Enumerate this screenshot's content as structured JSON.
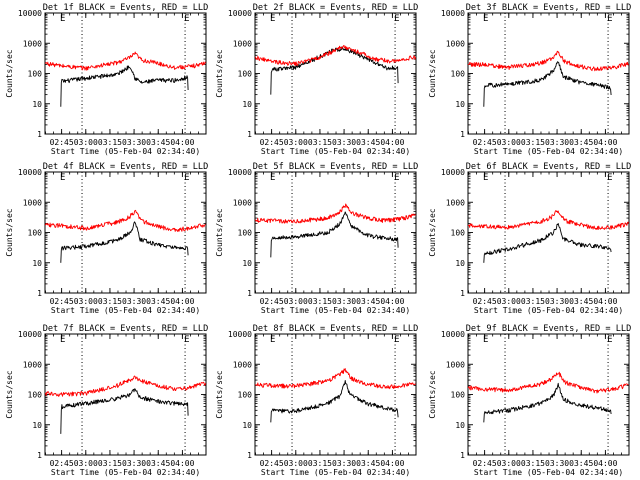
{
  "colors": {
    "events": "#000000",
    "lld": "#ff0000",
    "axis": "#000000",
    "background": "#ffffff"
  },
  "chart_data": [
    {
      "type": "line",
      "title": "Det 1f BLACK = Events, RED = LLD",
      "ylabel": "Counts/sec",
      "xlabel": "Start Time (05-Feb-04 02:34:40)",
      "x_tick_labels": [
        "02:45",
        "03:00",
        "03:15",
        "03:30",
        "03:45",
        "04:00"
      ],
      "x_ticks_min": [
        10.33,
        25.33,
        40.33,
        55.33,
        70.33,
        85.33
      ],
      "y_tick_labels": [
        "1",
        "10",
        "100",
        "1000",
        "10000"
      ],
      "ylim": [
        1,
        10000
      ],
      "yscale": "log",
      "xlim_min": [
        0,
        100
      ],
      "vlines_min": [
        23,
        87
      ],
      "vline_labels": [
        "E",
        "E"
      ],
      "series": [
        {
          "name": "BLACK",
          "color": "#000000",
          "x_min": [
            9.8,
            10.2,
            11,
            25,
            45,
            53,
            56,
            60,
            70,
            82,
            88.7,
            89.2
          ],
          "y": [
            8,
            65,
            55,
            70,
            95,
            180,
            70,
            50,
            60,
            60,
            80,
            6
          ]
        },
        {
          "name": "RED",
          "color": "#ff0000",
          "x_min": [
            0,
            10,
            25,
            45,
            52,
            56,
            60,
            70,
            80,
            90,
            100
          ],
          "y": [
            220,
            180,
            150,
            230,
            320,
            450,
            280,
            220,
            160,
            170,
            220
          ]
        }
      ]
    },
    {
      "type": "line",
      "title": "Det 2f BLACK = Events, RED = LLD",
      "ylabel": "Counts/sec",
      "xlabel": "Start Time (05-Feb-04 02:34:40)",
      "x_tick_labels": [
        "02:45",
        "03:00",
        "03:15",
        "03:30",
        "03:45",
        "04:00"
      ],
      "x_ticks_min": [
        10.33,
        25.33,
        40.33,
        55.33,
        70.33,
        85.33
      ],
      "y_tick_labels": [
        "1",
        "10",
        "100",
        "1000",
        "10000"
      ],
      "ylim": [
        1,
        10000
      ],
      "yscale": "log",
      "xlim_min": [
        0,
        100
      ],
      "vlines_min": [
        23,
        87
      ],
      "vline_labels": [
        "E",
        "E"
      ],
      "series": [
        {
          "name": "BLACK",
          "color": "#000000",
          "x_min": [
            9.8,
            10.2,
            14,
            25,
            37,
            47,
            55,
            63,
            73,
            82,
            88.7,
            89.2
          ],
          "y": [
            20,
            140,
            140,
            160,
            300,
            550,
            700,
            450,
            250,
            150,
            160,
            8
          ]
        },
        {
          "name": "RED",
          "color": "#ff0000",
          "x_min": [
            0,
            10,
            25,
            37,
            47,
            55,
            65,
            75,
            85,
            95,
            100
          ],
          "y": [
            350,
            250,
            210,
            300,
            500,
            800,
            500,
            300,
            250,
            320,
            350
          ]
        }
      ]
    },
    {
      "type": "line",
      "title": "Det 3f BLACK = Events, RED = LLD",
      "ylabel": "Counts/sec",
      "xlabel": "Start Time (05-Feb-04 02:34:40)",
      "x_tick_labels": [
        "02:45",
        "03:00",
        "03:15",
        "03:30",
        "03:45",
        "04:00"
      ],
      "x_ticks_min": [
        10.33,
        25.33,
        40.33,
        55.33,
        70.33,
        85.33
      ],
      "y_tick_labels": [
        "1",
        "10",
        "100",
        "1000",
        "10000"
      ],
      "ylim": [
        1,
        10000
      ],
      "yscale": "log",
      "xlim_min": [
        0,
        100
      ],
      "vlines_min": [
        23,
        87
      ],
      "vline_labels": [
        "E",
        "E"
      ],
      "series": [
        {
          "name": "BLACK",
          "color": "#000000",
          "x_min": [
            9.8,
            10.2,
            25,
            45,
            53,
            56,
            59,
            70,
            82,
            88.7,
            89.2
          ],
          "y": [
            8,
            40,
            45,
            60,
            120,
            260,
            80,
            50,
            40,
            35,
            8
          ]
        },
        {
          "name": "RED",
          "color": "#ff0000",
          "x_min": [
            0,
            10,
            25,
            45,
            52,
            56,
            60,
            70,
            80,
            90,
            100
          ],
          "y": [
            200,
            200,
            160,
            220,
            300,
            500,
            250,
            170,
            140,
            160,
            210
          ]
        }
      ]
    },
    {
      "type": "line",
      "title": "Det 4f BLACK = Events, RED = LLD",
      "ylabel": "Counts/sec",
      "xlabel": "Start Time (05-Feb-04 02:34:40)",
      "x_tick_labels": [
        "02:45",
        "03:00",
        "03:15",
        "03:30",
        "03:45",
        "04:00"
      ],
      "x_ticks_min": [
        10.33,
        25.33,
        40.33,
        55.33,
        70.33,
        85.33
      ],
      "y_tick_labels": [
        "1",
        "10",
        "100",
        "1000",
        "10000"
      ],
      "ylim": [
        1,
        10000
      ],
      "yscale": "log",
      "xlim_min": [
        0,
        100
      ],
      "vlines_min": [
        23,
        87
      ],
      "vline_labels": [
        "E",
        "E"
      ],
      "series": [
        {
          "name": "BLACK",
          "color": "#000000",
          "x_min": [
            9.8,
            10.2,
            25,
            45,
            53,
            56,
            59,
            70,
            82,
            88.7,
            89.2
          ],
          "y": [
            10,
            30,
            35,
            55,
            100,
            220,
            60,
            40,
            30,
            30,
            8
          ]
        },
        {
          "name": "RED",
          "color": "#ff0000",
          "x_min": [
            0,
            10,
            25,
            45,
            52,
            56,
            60,
            70,
            80,
            90,
            100
          ],
          "y": [
            180,
            170,
            140,
            220,
            320,
            500,
            250,
            160,
            120,
            140,
            190
          ]
        }
      ]
    },
    {
      "type": "line",
      "title": "Det 5f BLACK = Events, RED = LLD",
      "ylabel": "Counts/sec",
      "xlabel": "Start Time (05-Feb-04 02:34:40)",
      "x_tick_labels": [
        "02:45",
        "03:00",
        "03:15",
        "03:30",
        "03:45",
        "04:00"
      ],
      "x_ticks_min": [
        10.33,
        25.33,
        40.33,
        55.33,
        70.33,
        85.33
      ],
      "y_tick_labels": [
        "1",
        "10",
        "100",
        "1000",
        "10000"
      ],
      "ylim": [
        1,
        10000
      ],
      "yscale": "log",
      "xlim_min": [
        0,
        100
      ],
      "vlines_min": [
        23,
        87
      ],
      "vline_labels": [
        "E",
        "E"
      ],
      "series": [
        {
          "name": "BLACK",
          "color": "#000000",
          "x_min": [
            9.8,
            10.2,
            25,
            45,
            53,
            56,
            59,
            70,
            82,
            88.7,
            89.2
          ],
          "y": [
            15,
            65,
            70,
            100,
            200,
            500,
            180,
            80,
            65,
            60,
            12
          ]
        },
        {
          "name": "RED",
          "color": "#ff0000",
          "x_min": [
            0,
            10,
            25,
            45,
            52,
            56,
            60,
            70,
            80,
            90,
            100
          ],
          "y": [
            260,
            250,
            230,
            300,
            450,
            800,
            450,
            300,
            250,
            280,
            380
          ]
        }
      ]
    },
    {
      "type": "line",
      "title": "Det 6f BLACK = Events, RED = LLD",
      "ylabel": "Counts/sec",
      "xlabel": "Start Time (05-Feb-04 02:34:40)",
      "x_tick_labels": [
        "02:45",
        "03:00",
        "03:15",
        "03:30",
        "03:45",
        "04:00"
      ],
      "x_ticks_min": [
        10.33,
        25.33,
        40.33,
        55.33,
        70.33,
        85.33
      ],
      "y_tick_labels": [
        "1",
        "10",
        "100",
        "1000",
        "10000"
      ],
      "ylim": [
        1,
        10000
      ],
      "yscale": "log",
      "xlim_min": [
        0,
        100
      ],
      "vlines_min": [
        23,
        87
      ],
      "vline_labels": [
        "E",
        "E"
      ],
      "series": [
        {
          "name": "BLACK",
          "color": "#000000",
          "x_min": [
            9.8,
            10.2,
            25,
            45,
            53,
            56,
            59,
            70,
            82,
            88.7,
            89.2
          ],
          "y": [
            10,
            20,
            28,
            55,
            100,
            200,
            60,
            40,
            35,
            30,
            15
          ]
        },
        {
          "name": "RED",
          "color": "#ff0000",
          "x_min": [
            0,
            10,
            25,
            45,
            52,
            56,
            60,
            70,
            80,
            90,
            100
          ],
          "y": [
            170,
            160,
            150,
            230,
            330,
            550,
            250,
            180,
            140,
            150,
            200
          ]
        }
      ]
    },
    {
      "type": "line",
      "title": "Det 7f BLACK = Events, RED = LLD",
      "ylabel": "Counts/sec",
      "xlabel": "Start Time (05-Feb-04 02:34:40)",
      "x_tick_labels": [
        "02:45",
        "03:00",
        "03:15",
        "03:30",
        "03:45",
        "04:00"
      ],
      "x_ticks_min": [
        10.33,
        25.33,
        40.33,
        55.33,
        70.33,
        85.33
      ],
      "y_tick_labels": [
        "1",
        "10",
        "100",
        "1000",
        "10000"
      ],
      "ylim": [
        1,
        10000
      ],
      "yscale": "log",
      "xlim_min": [
        0,
        100
      ],
      "vlines_min": [
        23,
        87
      ],
      "vline_labels": [
        "E",
        "E"
      ],
      "series": [
        {
          "name": "BLACK",
          "color": "#000000",
          "x_min": [
            9.8,
            10.2,
            25,
            45,
            53,
            56,
            59,
            70,
            82,
            88.7,
            89.2
          ],
          "y": [
            5,
            40,
            50,
            75,
            100,
            150,
            80,
            60,
            50,
            50,
            5
          ]
        },
        {
          "name": "RED",
          "color": "#ff0000",
          "x_min": [
            0,
            10,
            25,
            45,
            52,
            56,
            60,
            70,
            80,
            90,
            100
          ],
          "y": [
            110,
            100,
            110,
            200,
            300,
            380,
            280,
            200,
            150,
            170,
            240
          ]
        }
      ]
    },
    {
      "type": "line",
      "title": "Det 8f BLACK = Events, RED = LLD",
      "ylabel": "Counts/sec",
      "xlabel": "Start Time (05-Feb-04 02:34:40)",
      "x_tick_labels": [
        "02:45",
        "03:00",
        "03:15",
        "03:30",
        "03:45",
        "04:00"
      ],
      "x_ticks_min": [
        10.33,
        25.33,
        40.33,
        55.33,
        70.33,
        85.33
      ],
      "y_tick_labels": [
        "1",
        "10",
        "100",
        "1000",
        "10000"
      ],
      "ylim": [
        1,
        10000
      ],
      "yscale": "log",
      "xlim_min": [
        0,
        100
      ],
      "vlines_min": [
        23,
        87
      ],
      "vline_labels": [
        "E",
        "E"
      ],
      "series": [
        {
          "name": "BLACK",
          "color": "#000000",
          "x_min": [
            9.8,
            10.2,
            25,
            45,
            53,
            56,
            59,
            70,
            82,
            88.7,
            89.2
          ],
          "y": [
            12,
            30,
            28,
            50,
            90,
            280,
            100,
            50,
            35,
            30,
            8
          ]
        },
        {
          "name": "RED",
          "color": "#ff0000",
          "x_min": [
            0,
            10,
            25,
            45,
            52,
            56,
            60,
            70,
            80,
            90,
            100
          ],
          "y": [
            210,
            200,
            190,
            280,
            450,
            650,
            330,
            220,
            180,
            190,
            230
          ]
        }
      ]
    },
    {
      "type": "line",
      "title": "Det 9f BLACK = Events, RED = LLD",
      "ylabel": "Counts/sec",
      "xlabel": "Start Time (05-Feb-04 02:34:40)",
      "x_tick_labels": [
        "02:45",
        "03:00",
        "03:15",
        "03:30",
        "03:45",
        "04:00"
      ],
      "x_ticks_min": [
        10.33,
        25.33,
        40.33,
        55.33,
        70.33,
        85.33
      ],
      "y_tick_labels": [
        "1",
        "10",
        "100",
        "1000",
        "10000"
      ],
      "ylim": [
        1,
        10000
      ],
      "yscale": "log",
      "xlim_min": [
        0,
        100
      ],
      "vlines_min": [
        23,
        87
      ],
      "vline_labels": [
        "E",
        "E"
      ],
      "series": [
        {
          "name": "BLACK",
          "color": "#000000",
          "x_min": [
            9.8,
            10.2,
            25,
            45,
            53,
            56,
            59,
            70,
            82,
            88.7,
            89.2
          ],
          "y": [
            12,
            25,
            30,
            50,
            90,
            220,
            70,
            45,
            35,
            30,
            15
          ]
        },
        {
          "name": "RED",
          "color": "#ff0000",
          "x_min": [
            0,
            10,
            25,
            45,
            52,
            56,
            60,
            70,
            80,
            90,
            100
          ],
          "y": [
            170,
            150,
            140,
            220,
            330,
            550,
            260,
            170,
            130,
            150,
            210
          ]
        }
      ]
    }
  ]
}
